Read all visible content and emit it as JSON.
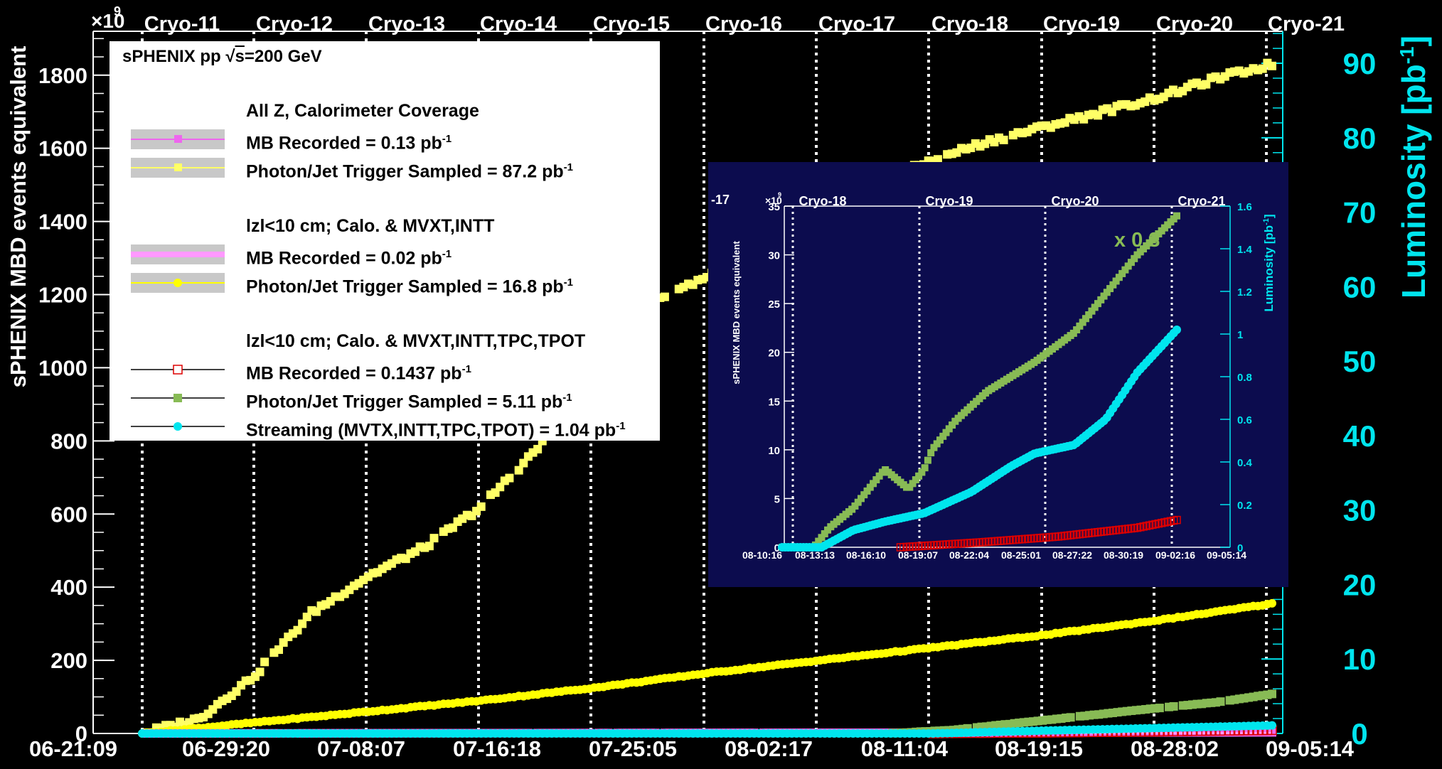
{
  "header": {
    "experiment": "sPHENIX pp ",
    "energy_symbol": "s",
    "energy": "=200 GeV"
  },
  "chart_data": {
    "type": "scatter",
    "exponent_label": "×10",
    "exponent_power": "9",
    "ylabel_left": "sPHENIX MBD events equivalent",
    "ylabel_right": "Luminosity [pb",
    "ylabel_right_sup": "-1",
    "ylabel_right_close": "]",
    "ylim_left": [
      0,
      1920
    ],
    "ylim_right": [
      0,
      94.3
    ],
    "yticks_left": [
      "0",
      "200",
      "400",
      "600",
      "800",
      "1000",
      "1200",
      "1400",
      "1600",
      "1800"
    ],
    "yticks_right": [
      "0",
      "10",
      "20",
      "30",
      "40",
      "50",
      "60",
      "70",
      "80",
      "90"
    ],
    "xticks": [
      "06-21:09",
      "06-29:20",
      "07-08:07",
      "07-16:18",
      "07-25:05",
      "08-02:17",
      "08-11:04",
      "08-19:15",
      "08-28:02",
      "09-05:14"
    ],
    "cryo_labels": [
      "Cryo-11",
      "Cryo-12",
      "Cryo-13",
      "Cryo-14",
      "Cryo-15",
      "Cryo-16",
      "Cryo-17",
      "Cryo-18",
      "Cryo-19",
      "Cryo-20",
      "Cryo-21"
    ],
    "series": [
      {
        "name": "Photon/Jet Trigger Sampled = 87.2 pb",
        "color": "#ffff66",
        "marker": "square",
        "x": [
          0,
          5,
          10,
          15,
          20,
          25,
          30,
          35,
          40,
          45,
          50,
          55,
          60,
          65,
          70,
          75,
          80,
          85,
          90,
          95,
          100
        ],
        "y": [
          0,
          40,
          160,
          330,
          430,
          510,
          620,
          780,
          1000,
          1180,
          1250,
          1340,
          1420,
          1500,
          1570,
          1620,
          1660,
          1700,
          1740,
          1790,
          1830
        ]
      },
      {
        "name": "Photon/Jet Trigger Sampled = 16.8 pb",
        "color": "#ffff00",
        "marker": "circle",
        "x": [
          0,
          10,
          20,
          30,
          40,
          50,
          60,
          70,
          80,
          90,
          100
        ],
        "y": [
          0,
          30,
          60,
          90,
          125,
          165,
          200,
          235,
          270,
          310,
          355
        ]
      },
      {
        "name": "MB Recorded = 0.13 pb",
        "color": "#ee66ee",
        "marker": "square",
        "x": [
          0,
          100
        ],
        "y": [
          0,
          3
        ]
      },
      {
        "name": "MB Recorded = 0.02 pb",
        "color": "#ff99ff",
        "marker": "line",
        "x": [
          0,
          100
        ],
        "y": [
          0,
          1
        ]
      },
      {
        "name": "MB Recorded = 0.1437 pb",
        "color": "#dd0000",
        "marker": "open-square",
        "x": [
          70,
          80,
          90,
          100
        ],
        "y": [
          0,
          2,
          5,
          9
        ]
      },
      {
        "name": "Photon/Jet Trigger Sampled = 5.11 pb",
        "color": "#88bb55",
        "marker": "square",
        "x": [
          66,
          72,
          78,
          84,
          90,
          95,
          100
        ],
        "y": [
          0,
          10,
          30,
          50,
          70,
          85,
          108
        ]
      },
      {
        "name": "Streaming (MVTX,INTT,TPC,TPOT) = 1.04 pb",
        "color": "#00e5ee",
        "marker": "circle",
        "x": [
          0,
          70,
          80,
          90,
          100
        ],
        "y": [
          0,
          0,
          8,
          15,
          22
        ]
      }
    ],
    "legend": {
      "groups": [
        "All Z, Calorimeter Coverage",
        "lzl<10 cm; Calo. & MVXT,INTT",
        "lzl<10 cm; Calo. & MVXT,INTT,TPC,TPOT"
      ],
      "entries": [
        {
          "label": "MB Recorded = 0.13 pb",
          "sup": "-1"
        },
        {
          "label": "Photon/Jet Trigger Sampled = 87.2 pb",
          "sup": "-1"
        },
        {
          "label": "MB Recorded = 0.02 pb",
          "sup": "-1"
        },
        {
          "label": "Photon/Jet Trigger Sampled = 16.8 pb",
          "sup": "-1"
        },
        {
          "label": "MB Recorded = 0.1437 pb",
          "sup": "-1"
        },
        {
          "label": "Photon/Jet Trigger Sampled = 5.11 pb",
          "sup": "-1"
        },
        {
          "label": "Streaming (MVTX,INTT,TPC,TPOT) = 1.04 pb",
          "sup": "-1"
        }
      ]
    },
    "inset": {
      "exponent_label": "×10",
      "exponent_power": "9",
      "ylabel_left": "sPHENIX MBD events equivalent",
      "ylabel_right": "Luminosity [pb",
      "ylabel_right_sup": "-1",
      "ylabel_right_close": "]",
      "scale_note": "x 0.3",
      "partial_cryo": "-17",
      "cryo_labels": [
        "Cryo-18",
        "Cryo-19",
        "Cryo-20",
        "Cryo-21"
      ],
      "ylim_left": [
        0,
        35
      ],
      "ylim_right": [
        0,
        1.6
      ],
      "yticks_left": [
        "0",
        "5",
        "10",
        "15",
        "20",
        "25",
        "30",
        "35"
      ],
      "yticks_right": [
        "0",
        "0.2",
        "0.4",
        "0.6",
        "0.8",
        "1",
        "1.2",
        "1.4",
        "1.6"
      ],
      "xticks": [
        "08-10:16",
        "08-13:13",
        "08-16:10",
        "08-19:07",
        "08-22:04",
        "08-25:01",
        "08-27:22",
        "08-30:19",
        "09-02:16",
        "09-05:14"
      ],
      "series": [
        {
          "name": "Photon/Jet Trigger Sampled",
          "color": "#88bb55",
          "marker": "square",
          "x": [
            0,
            8,
            12,
            18,
            26,
            32,
            36,
            38,
            44,
            52,
            60,
            64,
            74,
            80,
            84,
            90,
            100
          ],
          "y": [
            0,
            0,
            2,
            4,
            8,
            6,
            8,
            10,
            13,
            16,
            18,
            19,
            22,
            25,
            27,
            30,
            34
          ]
        },
        {
          "name": "Streaming",
          "color": "#00e5ee",
          "marker": "circle",
          "x": [
            0,
            10,
            18,
            26,
            36,
            48,
            58,
            64,
            74,
            82,
            90,
            100
          ],
          "y": [
            0,
            0,
            0.08,
            0.12,
            0.16,
            0.26,
            0.38,
            0.44,
            0.48,
            0.6,
            0.82,
            1.02
          ]
        },
        {
          "name": "MB Recorded",
          "color": "#dd0000",
          "marker": "open-square",
          "x": [
            30,
            50,
            70,
            90,
            100
          ],
          "y": [
            0,
            0.5,
            1.1,
            2.0,
            2.8
          ]
        }
      ]
    }
  }
}
